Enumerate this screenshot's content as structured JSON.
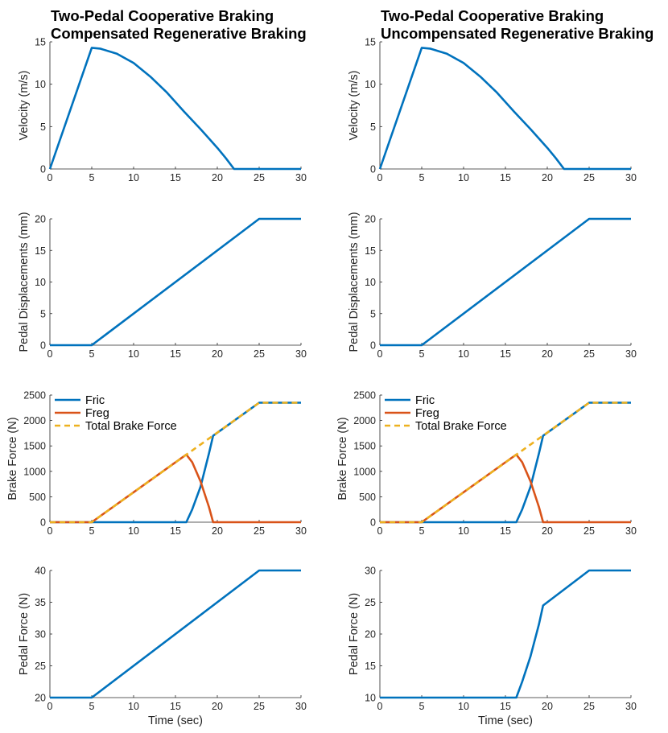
{
  "figure": {
    "columns": [
      {
        "title_line1": "Two-Pedal Cooperative Braking",
        "title_line2": "Compensated Regenerative Braking"
      },
      {
        "title_line1": "Two-Pedal Cooperative Braking",
        "title_line2": "Uncompensated Regenerative Braking"
      }
    ],
    "xlabel": "Time (sec)"
  },
  "chart_data": [
    {
      "id": "velocity-compensated",
      "type": "line",
      "title": "Two-Pedal Cooperative Braking / Compensated Regenerative Braking",
      "xlabel": "",
      "ylabel": "Velocity (m/s)",
      "xlim": [
        0,
        30
      ],
      "ylim": [
        0,
        15
      ],
      "xticks": [
        0,
        5,
        10,
        15,
        20,
        25,
        30
      ],
      "yticks": [
        0,
        5,
        10,
        15
      ],
      "series": [
        {
          "name": "Velocity",
          "color": "#0072BD",
          "dashed": false,
          "x": [
            0,
            5,
            6,
            8,
            10,
            12,
            14,
            16,
            18,
            20,
            21,
            22,
            30
          ],
          "y": [
            0,
            14.3,
            14.2,
            13.6,
            12.5,
            10.9,
            9.0,
            6.8,
            4.7,
            2.5,
            1.3,
            0,
            0
          ]
        }
      ]
    },
    {
      "id": "velocity-uncompensated",
      "type": "line",
      "title": "Two-Pedal Cooperative Braking / Uncompensated Regenerative Braking",
      "xlabel": "",
      "ylabel": "Velocity (m/s)",
      "xlim": [
        0,
        30
      ],
      "ylim": [
        0,
        15
      ],
      "xticks": [
        0,
        5,
        10,
        15,
        20,
        25,
        30
      ],
      "yticks": [
        0,
        5,
        10,
        15
      ],
      "series": [
        {
          "name": "Velocity",
          "color": "#0072BD",
          "dashed": false,
          "x": [
            0,
            5,
            6,
            8,
            10,
            12,
            14,
            16,
            18,
            20,
            21,
            22,
            30
          ],
          "y": [
            0,
            14.3,
            14.2,
            13.6,
            12.5,
            10.9,
            9.0,
            6.8,
            4.7,
            2.5,
            1.3,
            0,
            0
          ]
        }
      ]
    },
    {
      "id": "pedal-displacement-compensated",
      "type": "line",
      "xlabel": "",
      "ylabel": "Pedal Displacements (mm)",
      "xlim": [
        0,
        30
      ],
      "ylim": [
        0,
        20
      ],
      "xticks": [
        0,
        5,
        10,
        15,
        20,
        25,
        30
      ],
      "yticks": [
        0,
        5,
        10,
        15,
        20
      ],
      "series": [
        {
          "name": "Pedal Displacement",
          "color": "#0072BD",
          "dashed": false,
          "x": [
            0,
            5,
            25,
            30
          ],
          "y": [
            0,
            0,
            20,
            20
          ]
        }
      ]
    },
    {
      "id": "pedal-displacement-uncompensated",
      "type": "line",
      "xlabel": "",
      "ylabel": "Pedal Displacements (mm)",
      "xlim": [
        0,
        30
      ],
      "ylim": [
        0,
        20
      ],
      "xticks": [
        0,
        5,
        10,
        15,
        20,
        25,
        30
      ],
      "yticks": [
        0,
        5,
        10,
        15,
        20
      ],
      "series": [
        {
          "name": "Pedal Displacement",
          "color": "#0072BD",
          "dashed": false,
          "x": [
            0,
            5,
            25,
            30
          ],
          "y": [
            0,
            0,
            20,
            20
          ]
        }
      ]
    },
    {
      "id": "brake-force-compensated",
      "type": "line",
      "xlabel": "",
      "ylabel": "Brake Force (N)",
      "xlim": [
        0,
        30
      ],
      "ylim": [
        0,
        2500
      ],
      "xticks": [
        0,
        5,
        10,
        15,
        20,
        25,
        30
      ],
      "yticks": [
        0,
        500,
        1000,
        1500,
        2000,
        2500
      ],
      "legend": "top-left",
      "series": [
        {
          "name": "Fric",
          "color": "#0072BD",
          "dashed": false,
          "x": [
            0,
            16.3,
            17,
            18,
            19,
            19.5,
            25,
            30
          ],
          "y": [
            0,
            0,
            250,
            700,
            1350,
            1700,
            2350,
            2350
          ]
        },
        {
          "name": "Freg",
          "color": "#D95319",
          "dashed": false,
          "x": [
            0,
            5,
            16.3,
            17,
            18,
            19,
            19.5,
            30
          ],
          "y": [
            0,
            0,
            1330,
            1180,
            800,
            300,
            0,
            0
          ]
        },
        {
          "name": "Total Brake Force",
          "color": "#EDB120",
          "dashed": true,
          "x": [
            0,
            5,
            25,
            30
          ],
          "y": [
            0,
            0,
            2350,
            2350
          ]
        }
      ]
    },
    {
      "id": "brake-force-uncompensated",
      "type": "line",
      "xlabel": "",
      "ylabel": "Brake Force (N)",
      "xlim": [
        0,
        30
      ],
      "ylim": [
        0,
        2500
      ],
      "xticks": [
        0,
        5,
        10,
        15,
        20,
        25,
        30
      ],
      "yticks": [
        0,
        500,
        1000,
        1500,
        2000,
        2500
      ],
      "legend": "top-left",
      "series": [
        {
          "name": "Fric",
          "color": "#0072BD",
          "dashed": false,
          "x": [
            0,
            16.3,
            17,
            18,
            19,
            19.5,
            25,
            30
          ],
          "y": [
            0,
            0,
            250,
            700,
            1350,
            1700,
            2350,
            2350
          ]
        },
        {
          "name": "Freg",
          "color": "#D95319",
          "dashed": false,
          "x": [
            0,
            5,
            16.3,
            17,
            18,
            19,
            19.5,
            30
          ],
          "y": [
            0,
            0,
            1330,
            1180,
            800,
            300,
            0,
            0
          ]
        },
        {
          "name": "Total Brake Force",
          "color": "#EDB120",
          "dashed": true,
          "x": [
            0,
            5,
            25,
            30
          ],
          "y": [
            0,
            0,
            2350,
            2350
          ]
        }
      ]
    },
    {
      "id": "pedal-force-compensated",
      "type": "line",
      "xlabel": "Time (sec)",
      "ylabel": "Pedal Force (N)",
      "xlim": [
        0,
        30
      ],
      "ylim": [
        20,
        40
      ],
      "xticks": [
        0,
        5,
        10,
        15,
        20,
        25,
        30
      ],
      "yticks": [
        20,
        25,
        30,
        35,
        40
      ],
      "series": [
        {
          "name": "Pedal Force",
          "color": "#0072BD",
          "dashed": false,
          "x": [
            0,
            5,
            25,
            30
          ],
          "y": [
            20,
            20,
            40,
            40
          ]
        }
      ]
    },
    {
      "id": "pedal-force-uncompensated",
      "type": "line",
      "xlabel": "Time (sec)",
      "ylabel": "Pedal Force (N)",
      "xlim": [
        0,
        30
      ],
      "ylim": [
        10,
        30
      ],
      "xticks": [
        0,
        5,
        10,
        15,
        20,
        25,
        30
      ],
      "yticks": [
        10,
        15,
        20,
        25,
        30
      ],
      "series": [
        {
          "name": "Pedal Force",
          "color": "#0072BD",
          "dashed": false,
          "x": [
            0,
            16.3,
            17,
            18,
            19,
            19.5,
            25,
            30
          ],
          "y": [
            10,
            10,
            12.5,
            16.5,
            21.5,
            24.5,
            30,
            30
          ]
        }
      ]
    }
  ]
}
